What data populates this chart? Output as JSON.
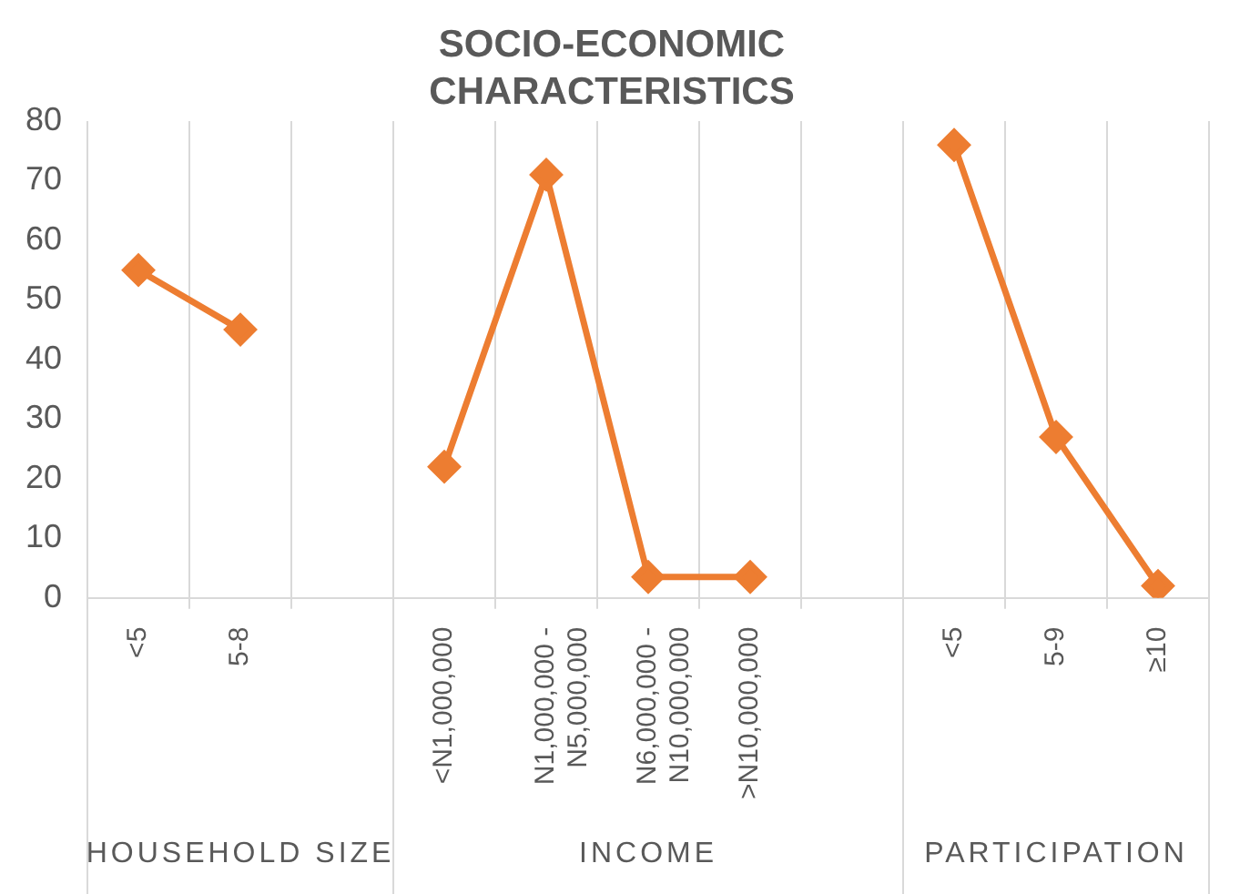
{
  "chart_data": {
    "type": "line",
    "title": "SOCIO-ECONOMIC CHARACTERISTICS",
    "categories": [
      "<5",
      "5-8",
      null,
      "<N1,000,000",
      "N1,000,000 - N5,000,000",
      "N6,000,000 - N10,000,000",
      ">N10,000,000",
      null,
      "<5",
      "5-9",
      "≥10"
    ],
    "series": [
      {
        "color": "#ed7d31",
        "values": [
          55,
          45,
          null,
          22,
          71,
          3.5,
          3.5,
          null,
          76,
          27,
          2
        ]
      }
    ],
    "annotations": [
      "HOUSEHOLD SIZE",
      "INCOME",
      "PARTICIPATION"
    ],
    "ylim": [
      0,
      80
    ],
    "yticks": [
      0,
      10,
      20,
      30,
      40,
      50,
      60,
      70,
      80
    ],
    "grid": "x",
    "legend": false,
    "marker": "diamond",
    "line_style": "solid"
  }
}
